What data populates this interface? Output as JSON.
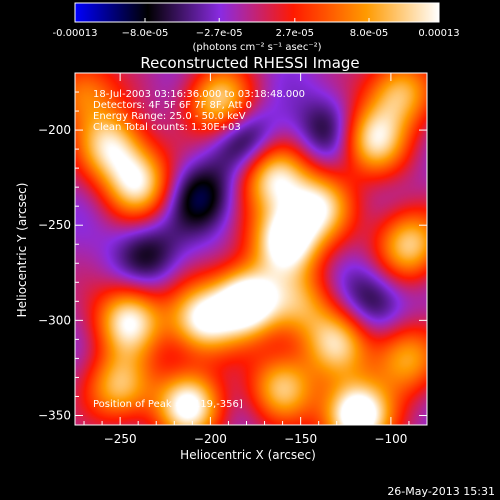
{
  "chart_data": {
    "type": "heatmap",
    "title": "Reconstructed RHESSI Image",
    "xlabel": "Heliocentric X (arcsec)",
    "ylabel": "Heliocentric Y (arcsec)",
    "xlim": [
      -275,
      -80
    ],
    "ylim": [
      -355,
      -170
    ],
    "xticks": [
      -250,
      -200,
      -150,
      -100
    ],
    "yticks": [
      -200,
      -250,
      -300,
      -350
    ],
    "colorbar": {
      "min": -0.00013,
      "max": 0.00013,
      "tick_values": [
        -0.00013,
        -8e-05,
        -2.7e-05,
        2.7e-05,
        8e-05,
        0.00013
      ],
      "tick_labels": [
        "-0.00013",
        "−8.0e-05",
        "−2.7e-05",
        "2.7e-05",
        "8.0e-05",
        "0.00013"
      ],
      "unit_label": "(photons cm⁻² s⁻¹ asec⁻²)",
      "colors": [
        "#0000ff",
        "#000000",
        "#8a2be2",
        "#ff1a00",
        "#ff9a00",
        "#ffffff"
      ]
    },
    "annotations": [
      "18-Jul-2003 03:16:36.000 to 03:18:48.000",
      "Detectors: 4F 5F 6F 7F 8F, Att 0",
      "Energy Range: 25.0 - 50.0 keV",
      "Clean     Total counts: 1.30E+03"
    ],
    "peak_label": "Position of Peak = [-119,-356]",
    "peak": {
      "x": -119,
      "y": -356
    },
    "features": [
      {
        "x": -180,
        "y": -290,
        "intensity": 1.0
      },
      {
        "x": -119,
        "y": -350,
        "intensity": 1.0
      },
      {
        "x": -158,
        "y": -258,
        "intensity": 0.9
      },
      {
        "x": -245,
        "y": -300,
        "intensity": 0.75
      },
      {
        "x": -205,
        "y": -300,
        "intensity": 0.75
      },
      {
        "x": -212,
        "y": -345,
        "intensity": 0.8
      },
      {
        "x": -240,
        "y": -228,
        "intensity": 0.7
      },
      {
        "x": -255,
        "y": -208,
        "intensity": 0.65
      },
      {
        "x": -195,
        "y": -185,
        "intensity": 0.65
      },
      {
        "x": -165,
        "y": -225,
        "intensity": 0.7
      },
      {
        "x": -140,
        "y": -240,
        "intensity": 0.65
      },
      {
        "x": -110,
        "y": -205,
        "intensity": 0.7
      },
      {
        "x": -95,
        "y": -180,
        "intensity": 0.6
      },
      {
        "x": -90,
        "y": -260,
        "intensity": 0.65
      },
      {
        "x": -130,
        "y": -312,
        "intensity": 0.6
      },
      {
        "x": -250,
        "y": -335,
        "intensity": 0.6
      },
      {
        "x": -160,
        "y": -335,
        "intensity": 0.6
      },
      {
        "x": -92,
        "y": -320,
        "intensity": 0.55
      },
      {
        "x": -150,
        "y": -292,
        "intensity": 0.45
      },
      {
        "x": -270,
        "y": -180,
        "intensity": 0.45
      },
      {
        "x": -235,
        "y": -265,
        "intensity": -0.3
      },
      {
        "x": -205,
        "y": -235,
        "intensity": -0.4
      },
      {
        "x": -180,
        "y": -205,
        "intensity": -0.35
      },
      {
        "x": -135,
        "y": -200,
        "intensity": -0.3
      },
      {
        "x": -110,
        "y": -290,
        "intensity": -0.3
      }
    ]
  },
  "footer": {
    "timestamp": "26-May-2013 15:31"
  }
}
